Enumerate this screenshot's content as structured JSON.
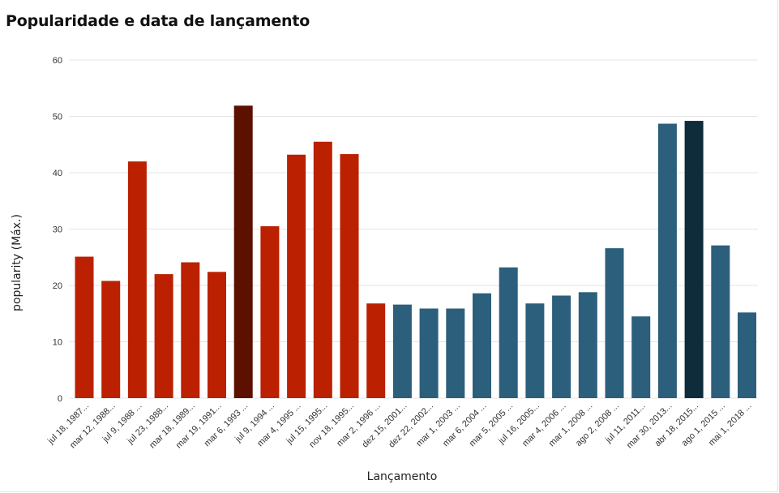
{
  "chart_data": {
    "type": "bar",
    "title": "Popularidade e data de lançamento",
    "xlabel": "Lançamento",
    "ylabel": "popularity (Máx.)",
    "ylim": [
      0,
      60
    ],
    "yticks": [
      0,
      10,
      20,
      30,
      40,
      50,
      60
    ],
    "grid": true,
    "categories": [
      "jul 18, 1987...",
      "mar 12, 1988...",
      "jul 9, 1988 ...",
      "jul 23, 1988...",
      "mar 18, 1989...",
      "mar 19, 1991...",
      "mar 6, 1993 ...",
      "jul 9, 1994 ...",
      "mar 4, 1995 ...",
      "jul 15, 1995...",
      "nov 18, 1995...",
      "mar 2, 1996 ...",
      "dez 15, 2001...",
      "dez 22, 2002...",
      "mar 1, 2003 ...",
      "mar 6, 2004 ...",
      "mar 5, 2005 ...",
      "jul 16, 2005...",
      "mar 4, 2006 ...",
      "mar 1, 2008 ...",
      "ago 2, 2008 ...",
      "jul 11, 2011...",
      "mar 30, 2013...",
      "abr 18, 2015...",
      "ago 1, 2015 ...",
      "mai 1, 2018 ..."
    ],
    "values": [
      25.1,
      20.8,
      42.0,
      22.0,
      24.1,
      22.4,
      51.9,
      30.5,
      43.2,
      45.5,
      43.3,
      16.8,
      16.6,
      15.9,
      15.9,
      18.6,
      23.2,
      16.8,
      18.2,
      18.8,
      26.6,
      14.5,
      48.7,
      49.2,
      27.1,
      15.2
    ],
    "colors": [
      "#bb2000",
      "#bb2000",
      "#bb2000",
      "#bb2000",
      "#bb2000",
      "#bb2000",
      "#5c1000",
      "#bb2000",
      "#bb2000",
      "#bb2000",
      "#bb2000",
      "#bb2000",
      "#2b5f7c",
      "#2b5f7c",
      "#2b5f7c",
      "#2b5f7c",
      "#2b5f7c",
      "#2b5f7c",
      "#2b5f7c",
      "#2b5f7c",
      "#2b5f7c",
      "#2b5f7c",
      "#2b5f7c",
      "#0e2c3a",
      "#2b5f7c",
      "#2b5f7c"
    ]
  }
}
